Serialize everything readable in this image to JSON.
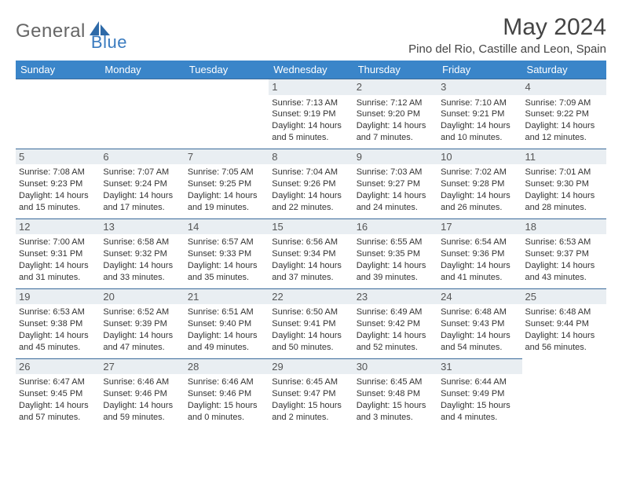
{
  "brand": {
    "part1": "General",
    "part2": "Blue"
  },
  "title": "May 2024",
  "location": "Pino del Rio, Castille and Leon, Spain",
  "colors": {
    "header_bg": "#3a85c9",
    "header_text": "#ffffff",
    "row_border": "#3a6a9a",
    "daynum_bg": "#e9eef2",
    "brand_gray": "#666666",
    "brand_blue": "#3a7bbf"
  },
  "weekdays": [
    "Sunday",
    "Monday",
    "Tuesday",
    "Wednesday",
    "Thursday",
    "Friday",
    "Saturday"
  ],
  "weeks": [
    [
      {
        "blank": true
      },
      {
        "blank": true
      },
      {
        "blank": true
      },
      {
        "day": "1",
        "sunrise": "Sunrise: 7:13 AM",
        "sunset": "Sunset: 9:19 PM",
        "d1": "Daylight: 14 hours",
        "d2": "and 5 minutes."
      },
      {
        "day": "2",
        "sunrise": "Sunrise: 7:12 AM",
        "sunset": "Sunset: 9:20 PM",
        "d1": "Daylight: 14 hours",
        "d2": "and 7 minutes."
      },
      {
        "day": "3",
        "sunrise": "Sunrise: 7:10 AM",
        "sunset": "Sunset: 9:21 PM",
        "d1": "Daylight: 14 hours",
        "d2": "and 10 minutes."
      },
      {
        "day": "4",
        "sunrise": "Sunrise: 7:09 AM",
        "sunset": "Sunset: 9:22 PM",
        "d1": "Daylight: 14 hours",
        "d2": "and 12 minutes."
      }
    ],
    [
      {
        "day": "5",
        "sunrise": "Sunrise: 7:08 AM",
        "sunset": "Sunset: 9:23 PM",
        "d1": "Daylight: 14 hours",
        "d2": "and 15 minutes."
      },
      {
        "day": "6",
        "sunrise": "Sunrise: 7:07 AM",
        "sunset": "Sunset: 9:24 PM",
        "d1": "Daylight: 14 hours",
        "d2": "and 17 minutes."
      },
      {
        "day": "7",
        "sunrise": "Sunrise: 7:05 AM",
        "sunset": "Sunset: 9:25 PM",
        "d1": "Daylight: 14 hours",
        "d2": "and 19 minutes."
      },
      {
        "day": "8",
        "sunrise": "Sunrise: 7:04 AM",
        "sunset": "Sunset: 9:26 PM",
        "d1": "Daylight: 14 hours",
        "d2": "and 22 minutes."
      },
      {
        "day": "9",
        "sunrise": "Sunrise: 7:03 AM",
        "sunset": "Sunset: 9:27 PM",
        "d1": "Daylight: 14 hours",
        "d2": "and 24 minutes."
      },
      {
        "day": "10",
        "sunrise": "Sunrise: 7:02 AM",
        "sunset": "Sunset: 9:28 PM",
        "d1": "Daylight: 14 hours",
        "d2": "and 26 minutes."
      },
      {
        "day": "11",
        "sunrise": "Sunrise: 7:01 AM",
        "sunset": "Sunset: 9:30 PM",
        "d1": "Daylight: 14 hours",
        "d2": "and 28 minutes."
      }
    ],
    [
      {
        "day": "12",
        "sunrise": "Sunrise: 7:00 AM",
        "sunset": "Sunset: 9:31 PM",
        "d1": "Daylight: 14 hours",
        "d2": "and 31 minutes."
      },
      {
        "day": "13",
        "sunrise": "Sunrise: 6:58 AM",
        "sunset": "Sunset: 9:32 PM",
        "d1": "Daylight: 14 hours",
        "d2": "and 33 minutes."
      },
      {
        "day": "14",
        "sunrise": "Sunrise: 6:57 AM",
        "sunset": "Sunset: 9:33 PM",
        "d1": "Daylight: 14 hours",
        "d2": "and 35 minutes."
      },
      {
        "day": "15",
        "sunrise": "Sunrise: 6:56 AM",
        "sunset": "Sunset: 9:34 PM",
        "d1": "Daylight: 14 hours",
        "d2": "and 37 minutes."
      },
      {
        "day": "16",
        "sunrise": "Sunrise: 6:55 AM",
        "sunset": "Sunset: 9:35 PM",
        "d1": "Daylight: 14 hours",
        "d2": "and 39 minutes."
      },
      {
        "day": "17",
        "sunrise": "Sunrise: 6:54 AM",
        "sunset": "Sunset: 9:36 PM",
        "d1": "Daylight: 14 hours",
        "d2": "and 41 minutes."
      },
      {
        "day": "18",
        "sunrise": "Sunrise: 6:53 AM",
        "sunset": "Sunset: 9:37 PM",
        "d1": "Daylight: 14 hours",
        "d2": "and 43 minutes."
      }
    ],
    [
      {
        "day": "19",
        "sunrise": "Sunrise: 6:53 AM",
        "sunset": "Sunset: 9:38 PM",
        "d1": "Daylight: 14 hours",
        "d2": "and 45 minutes."
      },
      {
        "day": "20",
        "sunrise": "Sunrise: 6:52 AM",
        "sunset": "Sunset: 9:39 PM",
        "d1": "Daylight: 14 hours",
        "d2": "and 47 minutes."
      },
      {
        "day": "21",
        "sunrise": "Sunrise: 6:51 AM",
        "sunset": "Sunset: 9:40 PM",
        "d1": "Daylight: 14 hours",
        "d2": "and 49 minutes."
      },
      {
        "day": "22",
        "sunrise": "Sunrise: 6:50 AM",
        "sunset": "Sunset: 9:41 PM",
        "d1": "Daylight: 14 hours",
        "d2": "and 50 minutes."
      },
      {
        "day": "23",
        "sunrise": "Sunrise: 6:49 AM",
        "sunset": "Sunset: 9:42 PM",
        "d1": "Daylight: 14 hours",
        "d2": "and 52 minutes."
      },
      {
        "day": "24",
        "sunrise": "Sunrise: 6:48 AM",
        "sunset": "Sunset: 9:43 PM",
        "d1": "Daylight: 14 hours",
        "d2": "and 54 minutes."
      },
      {
        "day": "25",
        "sunrise": "Sunrise: 6:48 AM",
        "sunset": "Sunset: 9:44 PM",
        "d1": "Daylight: 14 hours",
        "d2": "and 56 minutes."
      }
    ],
    [
      {
        "day": "26",
        "sunrise": "Sunrise: 6:47 AM",
        "sunset": "Sunset: 9:45 PM",
        "d1": "Daylight: 14 hours",
        "d2": "and 57 minutes."
      },
      {
        "day": "27",
        "sunrise": "Sunrise: 6:46 AM",
        "sunset": "Sunset: 9:46 PM",
        "d1": "Daylight: 14 hours",
        "d2": "and 59 minutes."
      },
      {
        "day": "28",
        "sunrise": "Sunrise: 6:46 AM",
        "sunset": "Sunset: 9:46 PM",
        "d1": "Daylight: 15 hours",
        "d2": "and 0 minutes."
      },
      {
        "day": "29",
        "sunrise": "Sunrise: 6:45 AM",
        "sunset": "Sunset: 9:47 PM",
        "d1": "Daylight: 15 hours",
        "d2": "and 2 minutes."
      },
      {
        "day": "30",
        "sunrise": "Sunrise: 6:45 AM",
        "sunset": "Sunset: 9:48 PM",
        "d1": "Daylight: 15 hours",
        "d2": "and 3 minutes."
      },
      {
        "day": "31",
        "sunrise": "Sunrise: 6:44 AM",
        "sunset": "Sunset: 9:49 PM",
        "d1": "Daylight: 15 hours",
        "d2": "and 4 minutes."
      },
      {
        "blank": true
      }
    ]
  ]
}
